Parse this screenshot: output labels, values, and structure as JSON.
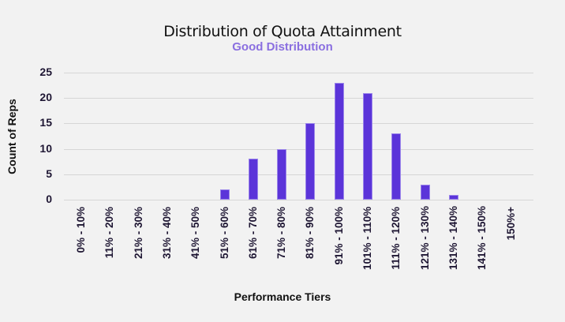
{
  "chart_data": {
    "type": "bar",
    "title": "Distribution of Quota Attainment",
    "subtitle": "Good Distribution",
    "xlabel": "Performance Tiers",
    "ylabel": "Count of Reps",
    "ylim": [
      0,
      25
    ],
    "yticks": [
      "0",
      "5",
      "10",
      "15",
      "20",
      "25"
    ],
    "grid": true,
    "legend": "none",
    "bar_color": "#5b34d9",
    "subtitle_color": "#8a6fe0",
    "categories": [
      "0% - 10%",
      "11% - 20%",
      "21% - 30%",
      "31% - 40%",
      "41% - 50%",
      "51% - 60%",
      "61% - 70%",
      "71% - 80%",
      "81% - 90%",
      "91% - 100%",
      "101% - 110%",
      "111% - 120%",
      "121% - 130%",
      "131% - 140%",
      "141% - 150%",
      "150%+"
    ],
    "values": [
      0,
      0,
      0,
      0,
      0,
      2,
      8,
      10,
      15,
      23,
      21,
      13,
      3,
      1,
      0,
      0
    ]
  }
}
